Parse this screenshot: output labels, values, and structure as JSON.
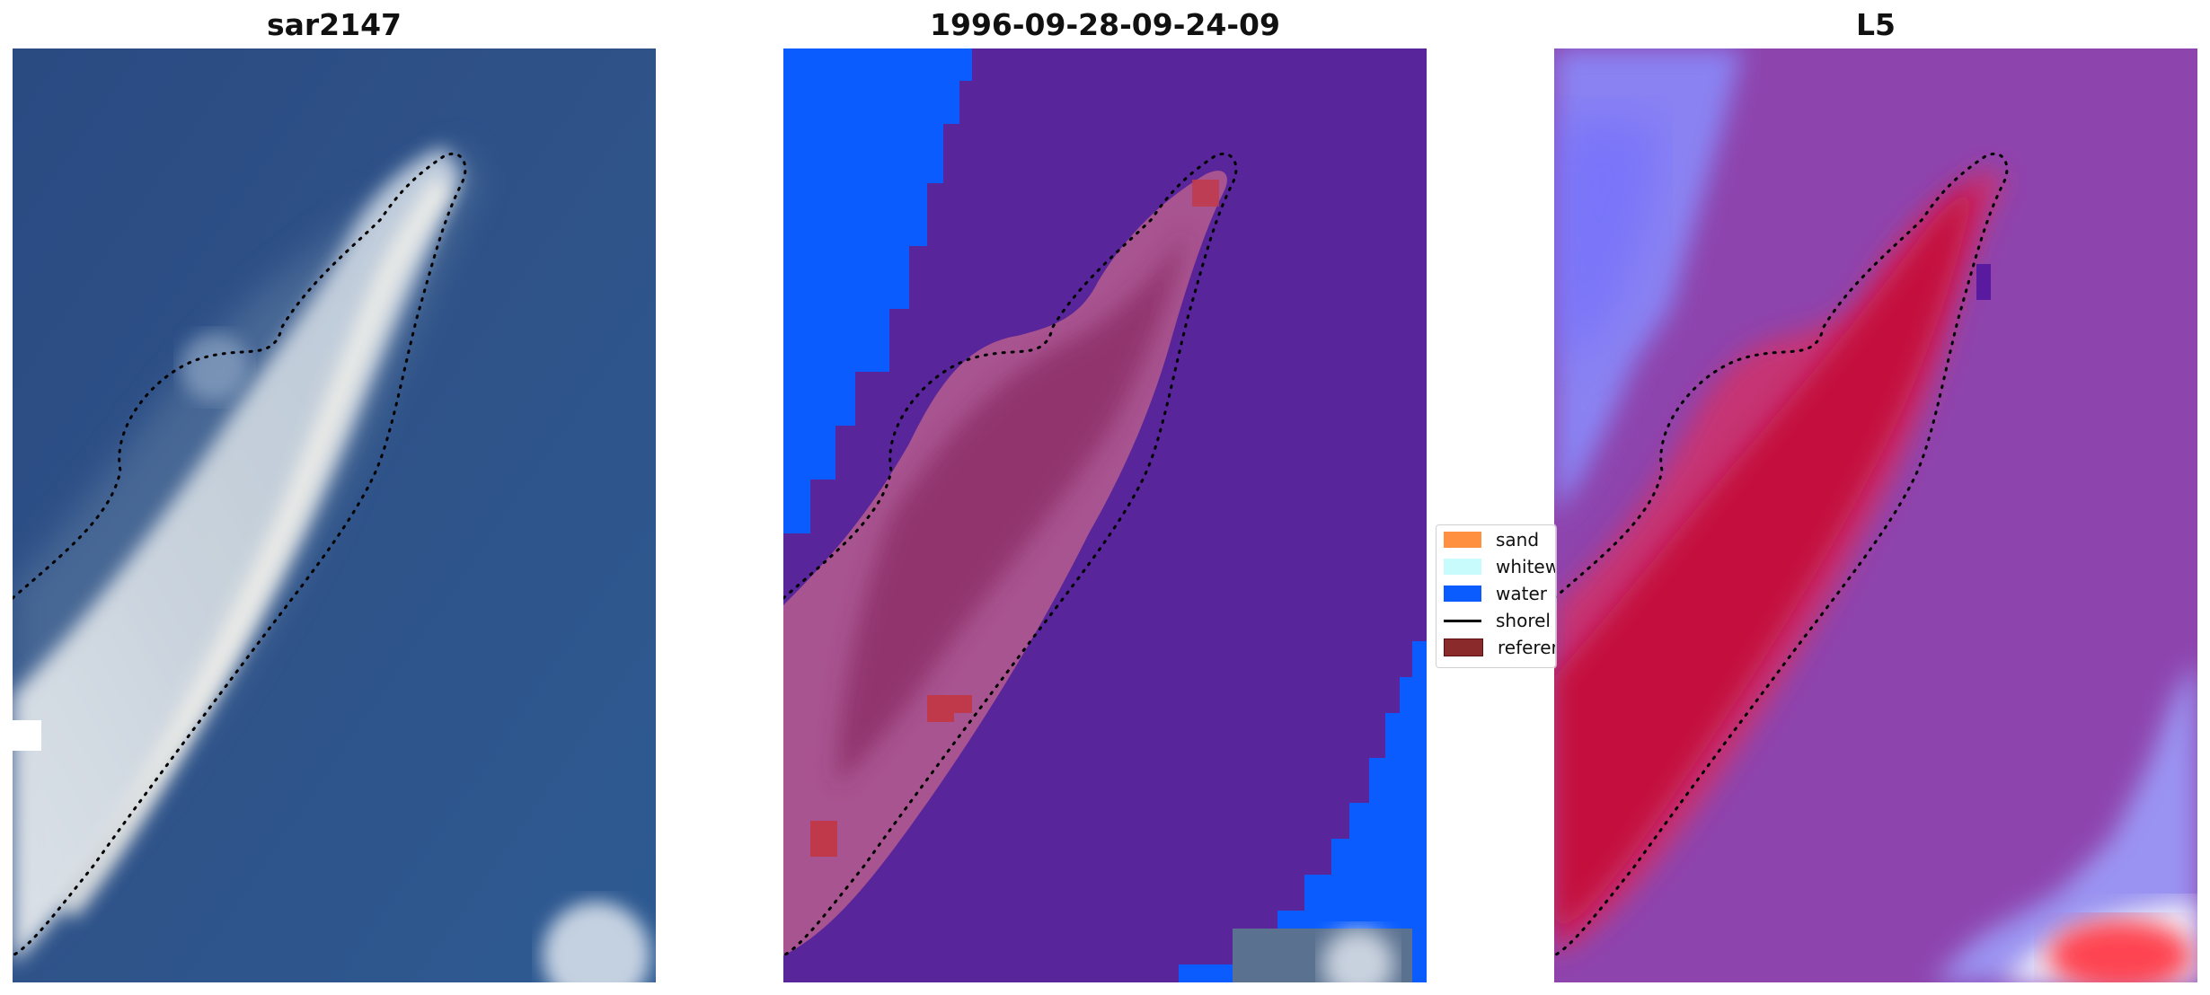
{
  "panels": [
    {
      "title": "sar2147"
    },
    {
      "title": "1996-09-28-09-24-09"
    },
    {
      "title": "L5"
    }
  ],
  "legend": {
    "items": [
      {
        "label": "sand",
        "color": "#ff9040",
        "kind": "patch"
      },
      {
        "label": "whitew",
        "color": "#c8fcfc",
        "kind": "patch"
      },
      {
        "label": "water",
        "color": "#0060ff",
        "kind": "patch"
      },
      {
        "label": "shorel",
        "color": "#000000",
        "kind": "line"
      },
      {
        "label": "referer",
        "color": "#8b2a2a",
        "kind": "patch"
      }
    ]
  },
  "colors": {
    "ocean": "#2c4f86",
    "classified_water": "#0a5cff",
    "classified_other": "#58259a",
    "heatmap_background": "#8e44ad",
    "heatmap_land": "#c40a3a"
  }
}
